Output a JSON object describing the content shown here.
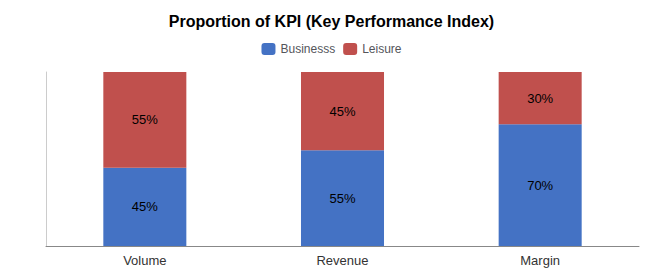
{
  "chart_data": {
    "type": "bar",
    "title": "Proportion of KPI (Key Performance Index)",
    "categories": [
      "Volume",
      "Revenue",
      "Margin"
    ],
    "stacked": true,
    "series": [
      {
        "name": "Businesss",
        "color": "#4472C4",
        "values": [
          45,
          55,
          70
        ],
        "value_labels": [
          "45%",
          "55%",
          "70%"
        ]
      },
      {
        "name": "Leisure",
        "color": "#C0504D",
        "values": [
          55,
          45,
          30
        ],
        "value_labels": [
          "55%",
          "45%",
          "30%"
        ]
      }
    ],
    "ylim": [
      0,
      100
    ],
    "grid": false,
    "legend": "top",
    "data_labels": true,
    "tick_labels": "x"
  }
}
